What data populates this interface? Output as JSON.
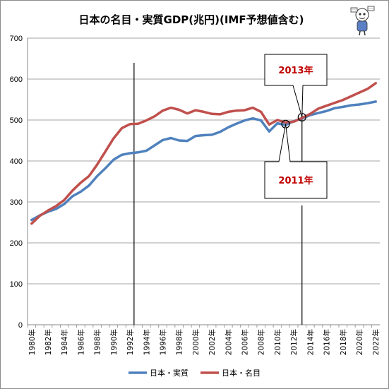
{
  "chart_data": {
    "type": "line",
    "title": "日本の名目・実質GDP(兆円)(IMF予想値含む)",
    "xlabel": "",
    "ylabel": "",
    "ylim": [
      0,
      700
    ],
    "yticks": [
      0,
      100,
      200,
      300,
      400,
      500,
      600,
      700
    ],
    "x": [
      1980,
      1981,
      1982,
      1983,
      1984,
      1985,
      1986,
      1987,
      1988,
      1989,
      1990,
      1991,
      1992,
      1993,
      1994,
      1995,
      1996,
      1997,
      1998,
      1999,
      2000,
      2001,
      2002,
      2003,
      2004,
      2005,
      2006,
      2007,
      2008,
      2009,
      2010,
      2011,
      2012,
      2013,
      2014,
      2015,
      2016,
      2017,
      2018,
      2019,
      2020,
      2021,
      2022
    ],
    "xtick_labels": [
      "1980年",
      "1982年",
      "1984年",
      "1986年",
      "1988年",
      "1990年",
      "1992年",
      "1994年",
      "1996年",
      "1998年",
      "2000年",
      "2002年",
      "2004年",
      "2006年",
      "2008年",
      "2010年",
      "2012年",
      "2014年",
      "2016年",
      "2018年",
      "2020年",
      "2022年"
    ],
    "series": [
      {
        "name": "日本・実質",
        "color": "#4f81bd",
        "values": [
          256,
          267,
          276,
          283,
          295,
          314,
          325,
          340,
          363,
          382,
          403,
          415,
          419,
          421,
          425,
          438,
          451,
          456,
          450,
          449,
          461,
          463,
          464,
          471,
          482,
          491,
          499,
          504,
          499,
          472,
          492,
          488,
          497,
          504,
          512,
          517,
          522,
          529,
          532,
          536,
          538,
          541,
          545
        ]
      },
      {
        "name": "日本・名目",
        "color": "#c0504d",
        "values": [
          247,
          266,
          279,
          290,
          305,
          328,
          347,
          363,
          391,
          423,
          455,
          480,
          490,
          491,
          499,
          509,
          523,
          530,
          525,
          516,
          524,
          520,
          515,
          514,
          520,
          523,
          524,
          530,
          520,
          489,
          500,
          494,
          496,
          505,
          515,
          528,
          535,
          542,
          549,
          558,
          567,
          576,
          590
        ]
      }
    ],
    "grid": "horizontal",
    "legend_position": "bottom",
    "vlines": [
      1992.5,
      2013
    ],
    "callouts": [
      {
        "label": "2013年",
        "x": 2013,
        "y": 507
      },
      {
        "label": "2011年",
        "x": 2011,
        "y": 490
      }
    ]
  }
}
